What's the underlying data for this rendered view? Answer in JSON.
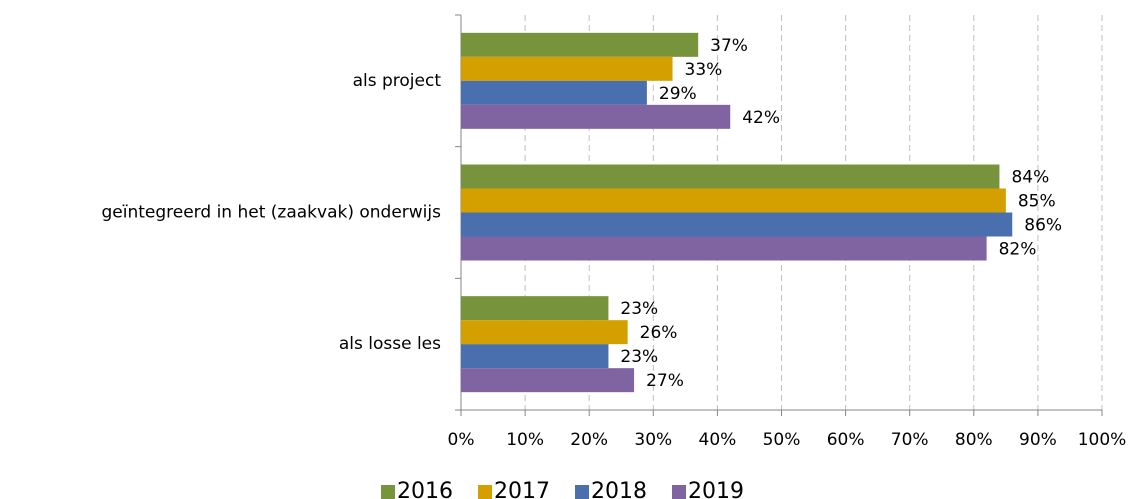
{
  "chart_data": {
    "type": "bar",
    "orientation": "horizontal",
    "categories": [
      "als project",
      "geïntegreerd in het (zaakvak) onderwijs",
      "als losse les"
    ],
    "series": [
      {
        "name": "2016",
        "color": "#77933c",
        "values": [
          37,
          84,
          23
        ],
        "value_labels": [
          "37%",
          "84%",
          "23%"
        ]
      },
      {
        "name": "2017",
        "color": "#d4a000",
        "values": [
          33,
          85,
          26
        ],
        "value_labels": [
          "33%",
          "85%",
          "26%"
        ]
      },
      {
        "name": "2018",
        "color": "#4a6fae",
        "values": [
          29,
          86,
          23
        ],
        "value_labels": [
          "29%",
          "86%",
          "23%"
        ]
      },
      {
        "name": "2019",
        "color": "#8064a2",
        "values": [
          42,
          82,
          27
        ],
        "value_labels": [
          "42%",
          "82%",
          "27%"
        ]
      }
    ],
    "xlim": [
      0,
      100
    ],
    "xticks": [
      {
        "value": 0,
        "label": "0%"
      },
      {
        "value": 10,
        "label": "10%"
      },
      {
        "value": 20,
        "label": "20%"
      },
      {
        "value": 30,
        "label": "30%"
      },
      {
        "value": 40,
        "label": "40%"
      },
      {
        "value": 50,
        "label": "50%"
      },
      {
        "value": 60,
        "label": "60%"
      },
      {
        "value": 70,
        "label": "70%"
      },
      {
        "value": 80,
        "label": "80%"
      },
      {
        "value": 90,
        "label": "90%"
      },
      {
        "value": 100,
        "label": "100%"
      }
    ],
    "grid": true,
    "legend": "bottom"
  }
}
